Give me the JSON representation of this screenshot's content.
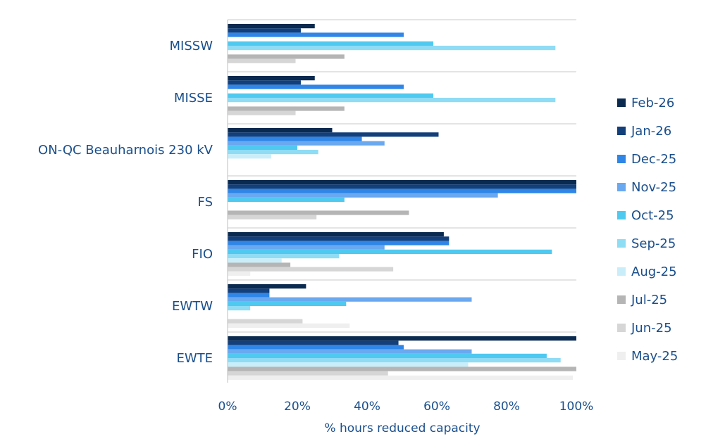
{
  "chart_data": {
    "type": "bar",
    "orientation": "horizontal",
    "categories": [
      "MISSW",
      "MISSE",
      "ON-QC Beauharnois 230 kV",
      "FS",
      "FIO",
      "EWTW",
      "EWTE"
    ],
    "xlabel": "% hours reduced capacity",
    "xlim": [
      0,
      100
    ],
    "xticks": [
      "0%",
      "20%",
      "40%",
      "60%",
      "80%",
      "100%"
    ],
    "grid": "horizontal separators",
    "legend_position": "right",
    "series": [
      {
        "name": "Feb-26",
        "color": "#0b2a4f",
        "values": [
          25,
          25,
          30,
          100,
          62,
          22.5,
          100
        ]
      },
      {
        "name": "Jan-26",
        "color": "#133f7a",
        "values": [
          21,
          21,
          60.5,
          100,
          63.5,
          12,
          49
        ]
      },
      {
        "name": "Dec-25",
        "color": "#2f86e6",
        "values": [
          50.5,
          50.5,
          38.5,
          100,
          63.5,
          12,
          50.5
        ]
      },
      {
        "name": "Nov-25",
        "color": "#6aa8ef",
        "values": [
          0,
          0,
          45,
          77.5,
          45,
          70,
          70
        ]
      },
      {
        "name": "Oct-25",
        "color": "#4fc9f0",
        "values": [
          59,
          59,
          20,
          33.5,
          93,
          34,
          91.5
        ]
      },
      {
        "name": "Sep-25",
        "color": "#8fdcf5",
        "values": [
          94,
          94,
          26,
          0,
          32,
          6.5,
          95.5
        ]
      },
      {
        "name": "Aug-25",
        "color": "#c9eefa",
        "values": [
          0,
          0,
          12.5,
          0,
          15.5,
          0,
          69
        ]
      },
      {
        "name": "Jul-25",
        "color": "#b5b5b5",
        "values": [
          33.5,
          33.5,
          0,
          52,
          18,
          0,
          100
        ]
      },
      {
        "name": "Jun-25",
        "color": "#d6d6d6",
        "values": [
          19.5,
          19.5,
          0,
          25.5,
          47.5,
          21.5,
          46
        ]
      },
      {
        "name": "May-25",
        "color": "#efefef",
        "values": [
          0,
          0,
          0,
          0,
          6.5,
          35,
          99
        ]
      }
    ]
  }
}
